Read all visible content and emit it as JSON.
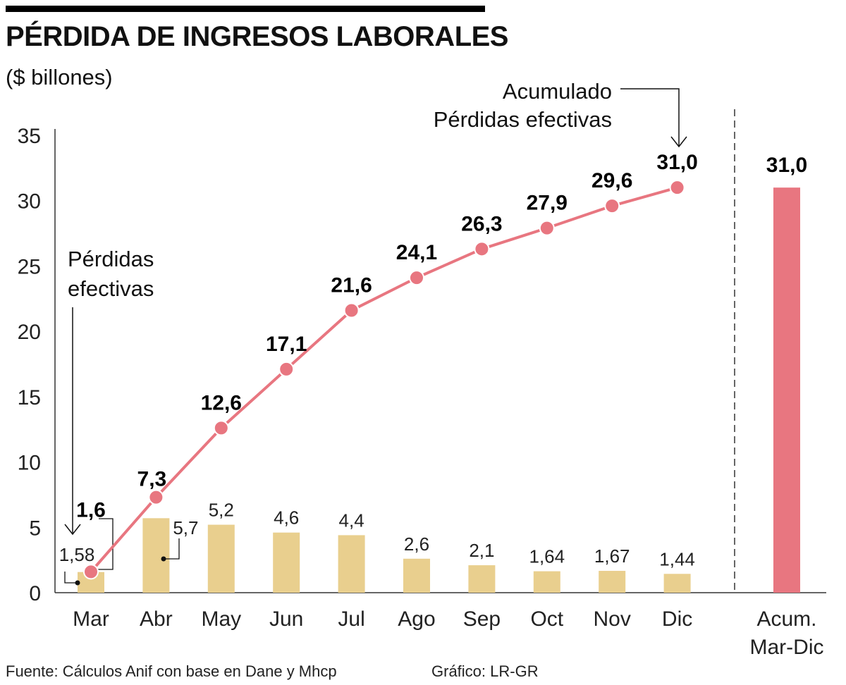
{
  "header": {
    "title": "PÉRDIDA DE INGRESOS LABORALES",
    "subtitle": "($ billones)"
  },
  "colors": {
    "bar": "#e9cf8e",
    "line": "#e87680",
    "axis": "#333333"
  },
  "chart_data": {
    "type": "bar+line",
    "title": "PÉRDIDA DE INGRESOS LABORALES",
    "subtitle": "($ billones)",
    "categories": [
      "Mar",
      "Abr",
      "May",
      "Jun",
      "Jul",
      "Ago",
      "Sep",
      "Oct",
      "Nov",
      "Dic"
    ],
    "ylim": [
      0,
      35
    ],
    "yticks": [
      "0",
      "5",
      "10",
      "15",
      "20",
      "25",
      "30",
      "35"
    ],
    "series": [
      {
        "name": "Pérdidas efectivas",
        "kind": "bar",
        "values": [
          1.58,
          5.7,
          5.2,
          4.6,
          4.4,
          2.6,
          2.1,
          1.64,
          1.67,
          1.44
        ],
        "labels": [
          "1,58",
          "5,7",
          "5,2",
          "4,6",
          "4,4",
          "2,6",
          "2,1",
          "1,64",
          "1,67",
          "1,44"
        ]
      },
      {
        "name": "Acumulado Pérdidas efectivas",
        "kind": "line",
        "values": [
          1.6,
          7.3,
          12.6,
          17.1,
          21.6,
          24.1,
          26.3,
          27.9,
          29.6,
          31.0
        ],
        "labels": [
          "1,6",
          "7,3",
          "12,6",
          "17,1",
          "21,6",
          "24,1",
          "26,3",
          "27,9",
          "29,6",
          "31,0"
        ]
      }
    ],
    "total_bar": {
      "category_lines": [
        "Acum.",
        "Mar-Dic"
      ],
      "value": 31.0,
      "label": "31,0"
    },
    "annotations": {
      "bars_lines": [
        "Pérdidas",
        "efectivas"
      ],
      "line_lines": [
        "Acumulado",
        "Pérdidas efectivas"
      ]
    }
  },
  "footer": {
    "source": "Fuente: Cálculos Anif con base en Dane y Mhcp",
    "credit": "Gráfico: LR-GR"
  }
}
